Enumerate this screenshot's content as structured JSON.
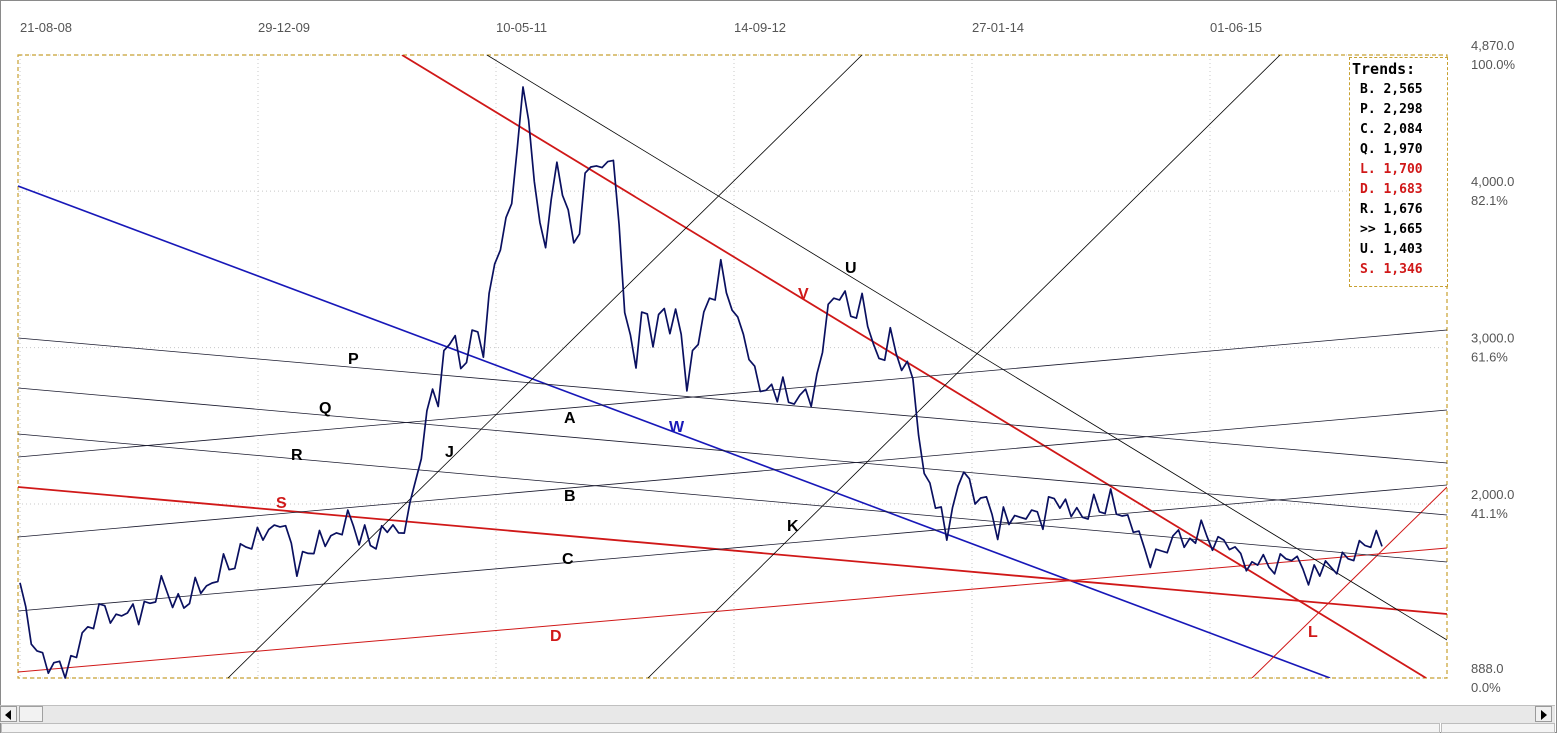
{
  "chart_data": {
    "type": "line",
    "title": "",
    "xlabel": "",
    "ylabel": "",
    "x_ticks": [
      "21-08-08",
      "29-12-09",
      "10-05-11",
      "14-09-12",
      "27-01-14",
      "01-06-15"
    ],
    "y_ticks": [
      {
        "value": "4,870.0",
        "pct": "100.0%"
      },
      {
        "value": "4,000.0",
        "pct": "82.1%"
      },
      {
        "value": "3,000.0",
        "pct": "61.6%"
      },
      {
        "value": "2,000.0",
        "pct": "41.1%"
      },
      {
        "value": "888.0",
        "pct": "0.0%"
      }
    ],
    "ylim": [
      888,
      4870
    ],
    "grid": true,
    "series": [
      {
        "values": [
          1420,
          1330,
          1150,
          1000,
          1050,
          980,
          940,
          1010,
          960,
          1000,
          1050,
          1100,
          1200,
          1250,
          1300,
          1350,
          1300,
          1250,
          1300,
          1380,
          1330,
          1260,
          1300,
          1350,
          1420,
          1480,
          1440,
          1400,
          1380,
          1350,
          1440,
          1500,
          1460,
          1400,
          1480,
          1550,
          1620,
          1580,
          1650,
          1700,
          1740,
          1790,
          1820,
          1800,
          1760,
          1850,
          1900,
          1800,
          1750,
          1600,
          1650,
          1700,
          1760,
          1800,
          1760,
          1720,
          1800,
          1850,
          1900,
          1860,
          1800,
          1820,
          1750,
          1790,
          1830,
          1850,
          1790,
          1800,
          1860,
          1950,
          2150,
          2350,
          2550,
          2750,
          2700,
          2950,
          3050,
          3000,
          2850,
          2950,
          3050,
          3100,
          3000,
          3300,
          3550,
          3700,
          3800,
          3950,
          4200,
          4650,
          4500,
          4000,
          3800,
          3700,
          3900,
          4200,
          4050,
          3850,
          3700,
          3650,
          4100,
          4200,
          4100,
          4150,
          4250,
          4150,
          3800,
          3300,
          3050,
          2900,
          3150,
          3200,
          3050,
          3150,
          3250,
          3150,
          3200,
          3100,
          2800,
          2950,
          3050,
          3150,
          3300,
          3350,
          3500,
          3350,
          3300,
          3150,
          3100,
          3000,
          2850,
          2750,
          2650,
          2750,
          2700,
          2750,
          2650,
          2700,
          2650,
          2750,
          2700,
          2800,
          3000,
          3200,
          3300,
          3350,
          3300,
          3200,
          3250,
          3300,
          3150,
          3100,
          2900,
          2950,
          3050,
          2950,
          2900,
          2850,
          2800,
          2500,
          2150,
          2150,
          2050,
          1950,
          1800,
          1900,
          2100,
          2250,
          2100,
          2000,
          2100,
          2000,
          1950,
          1850,
          1950,
          1900,
          1850,
          1900,
          1950,
          1900,
          1950,
          1900,
          2000,
          2050,
          2050,
          2000,
          1950,
          1900,
          1900,
          1950,
          2000,
          1950,
          2000,
          2050,
          1950,
          2000,
          1900,
          1850,
          1750,
          1700,
          1640,
          1650,
          1700,
          1750,
          1750,
          1850,
          1800,
          1750,
          1780,
          1820,
          1780,
          1750,
          1730,
          1770,
          1770,
          1680,
          1700,
          1650,
          1600,
          1640,
          1600,
          1580,
          1600,
          1620,
          1650,
          1700,
          1620,
          1600,
          1560,
          1580,
          1570,
          1560,
          1580,
          1600,
          1630,
          1650,
          1700,
          1720,
          1750,
          1800,
          1800,
          1760
        ]
      }
    ],
    "trend_lines": [
      {
        "label": "W",
        "color": "#1818b8"
      },
      {
        "label": "V",
        "color": "#d01818"
      },
      {
        "label": "S",
        "color": "#d01818"
      },
      {
        "label": "D",
        "color": "#d01818"
      },
      {
        "label": "L",
        "color": "#d01818"
      },
      {
        "label": "U",
        "color": "#000000"
      },
      {
        "label": "P",
        "color": "#000000"
      },
      {
        "label": "Q",
        "color": "#000000"
      },
      {
        "label": "R",
        "color": "#000000"
      },
      {
        "label": "A",
        "color": "#000000"
      },
      {
        "label": "B",
        "color": "#000000"
      },
      {
        "label": "C",
        "color": "#000000"
      },
      {
        "label": "J",
        "color": "#000000"
      },
      {
        "label": "K",
        "color": "#000000"
      }
    ],
    "trends_legend": {
      "title": "Trends:",
      "entries": [
        {
          "key": "B.",
          "value": "2,565",
          "color": "#000000"
        },
        {
          "key": "P.",
          "value": "2,298",
          "color": "#000000"
        },
        {
          "key": "C.",
          "value": "2,084",
          "color": "#000000"
        },
        {
          "key": "Q.",
          "value": "1,970",
          "color": "#000000"
        },
        {
          "key": "L.",
          "value": "1,700",
          "color": "#d01818"
        },
        {
          "key": "D.",
          "value": "1,683",
          "color": "#d01818"
        },
        {
          "key": "R.",
          "value": "1,676",
          "color": "#000000"
        },
        {
          "key": ">>",
          "value": "1,665",
          "color": "#000000"
        },
        {
          "key": "U.",
          "value": "1,403",
          "color": "#000000"
        },
        {
          "key": "S.",
          "value": "1,346",
          "color": "#d01818"
        }
      ]
    }
  }
}
